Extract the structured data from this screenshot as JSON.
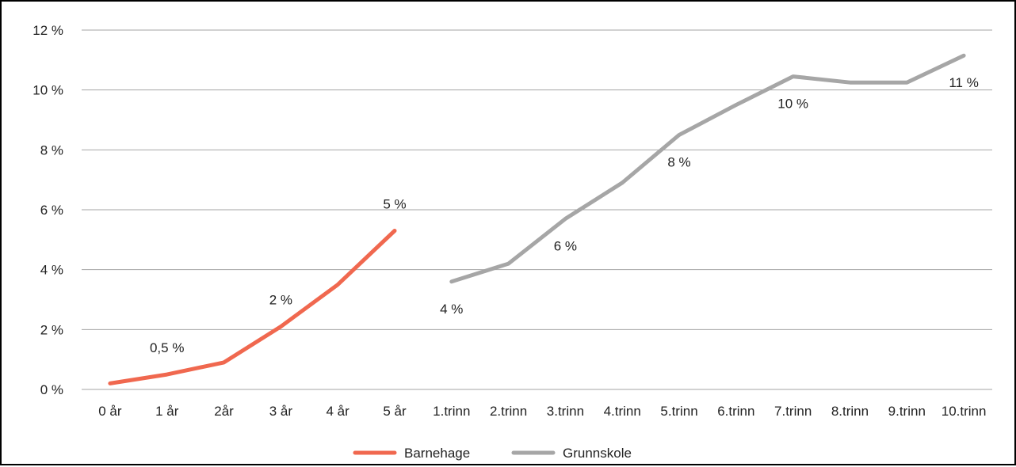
{
  "chart_data": {
    "type": "line",
    "title": "",
    "xlabel": "",
    "ylabel": "",
    "categories": [
      "0 år",
      "1 år",
      "2år",
      "3 år",
      "4 år",
      "5 år",
      "1.trinn",
      "2.trinn",
      "3.trinn",
      "4.trinn",
      "5.trinn",
      "6.trinn",
      "7.trinn",
      "8.trinn",
      "9.trinn",
      "10.trinn"
    ],
    "y_ticks": [
      "0 %",
      "2 %",
      "4 %",
      "6 %",
      "8 %",
      "10 %",
      "12 %"
    ],
    "ylim": [
      0,
      12
    ],
    "grid": true,
    "legend_position": "bottom",
    "series": [
      {
        "name": "Barnehage",
        "color": "#f0684f",
        "values": [
          0.2,
          0.5,
          0.9,
          2.1,
          3.5,
          5.3,
          null,
          null,
          null,
          null,
          null,
          null,
          null,
          null,
          null,
          null
        ],
        "labels": [
          {
            "index": 1,
            "text": "0,5 %"
          },
          {
            "index": 3,
            "text": "2 %"
          },
          {
            "index": 5,
            "text": "5 %"
          }
        ]
      },
      {
        "name": "Grunnskole",
        "color": "#a6a6a6",
        "values": [
          null,
          null,
          null,
          null,
          null,
          null,
          3.6,
          4.2,
          5.7,
          6.9,
          8.5,
          9.5,
          10.45,
          10.25,
          10.25,
          11.15
        ],
        "labels": [
          {
            "index": 6,
            "text": "4 %"
          },
          {
            "index": 8,
            "text": "6 %"
          },
          {
            "index": 10,
            "text": "8 %"
          },
          {
            "index": 12,
            "text": "10 %"
          },
          {
            "index": 15,
            "text": "11 %"
          }
        ]
      }
    ]
  }
}
